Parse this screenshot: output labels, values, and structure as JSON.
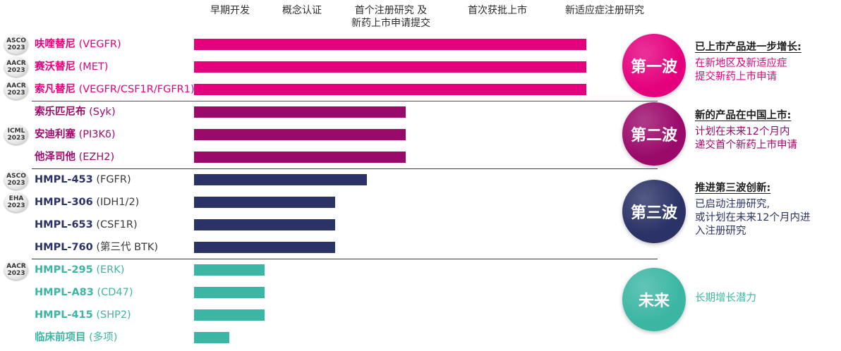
{
  "phases": [
    {
      "lines": [
        "早期开发"
      ]
    },
    {
      "lines": [
        "概念认证"
      ]
    },
    {
      "lines": [
        "首个注册研究 及",
        "新药上市申请提交"
      ]
    },
    {
      "lines": [
        "首次获批上市"
      ]
    },
    {
      "lines": [
        "新适应症注册研究"
      ]
    }
  ],
  "colors": {
    "wave1": "#e5007e",
    "wave2": "#9b0a6b",
    "wave3": "#2a3266",
    "future": "#3bb6a3"
  },
  "chart_data": {
    "type": "bar",
    "orientation": "horizontal",
    "x_scale": "development stage (5 stages)",
    "rows": [
      {
        "name": "呋喹替尼",
        "target": "(VEGFR)",
        "badge": [
          "ASCO",
          "2023"
        ],
        "group": "wave1",
        "stage": 5.0
      },
      {
        "name": "赛沃替尼",
        "target": "(MET)",
        "badge": [
          "AACR",
          "2023"
        ],
        "group": "wave1",
        "stage": 5.0
      },
      {
        "name": "索凡替尼",
        "target": "(VEGFR/CSF1R/FGFR1)",
        "badge": [
          "AACR",
          "2023"
        ],
        "group": "wave1",
        "stage": 5.0
      },
      {
        "name": "索乐匹尼布",
        "target": "(Syk)",
        "badge": null,
        "group": "wave2",
        "stage": 2.7
      },
      {
        "name": "安迪利塞",
        "target": "(PI3Kδ)",
        "badge": [
          "ICML",
          "2023"
        ],
        "group": "wave2",
        "stage": 2.7
      },
      {
        "name": "他泽司他",
        "target": "(EZH2)",
        "badge": null,
        "group": "wave2",
        "stage": 2.7
      },
      {
        "name": "HMPL-453",
        "target": "(FGFR)",
        "badge": [
          "ASCO",
          "2023"
        ],
        "group": "wave3",
        "stage": 2.2
      },
      {
        "name": "HMPL-306",
        "target": "(IDH1/2)",
        "badge": [
          "EHA",
          "2023"
        ],
        "group": "wave3",
        "stage": 1.8
      },
      {
        "name": "HMPL-653",
        "target": "(CSF1R)",
        "badge": null,
        "group": "wave3",
        "stage": 1.8
      },
      {
        "name": "HMPL-760",
        "target": "(第三代 BTK)",
        "badge": null,
        "group": "wave3",
        "stage": 1.8
      },
      {
        "name": "HMPL-295",
        "target": "(ERK)",
        "badge": [
          "AACR",
          "2023"
        ],
        "group": "future",
        "stage": 0.9
      },
      {
        "name": "HMPL-A83",
        "target": "(CD47)",
        "badge": null,
        "group": "future",
        "stage": 0.9
      },
      {
        "name": "HMPL-415",
        "target": "(SHP2)",
        "badge": null,
        "group": "future",
        "stage": 0.9
      },
      {
        "name": "临床前项目",
        "target": "(多项)",
        "badge": null,
        "group": "future",
        "stage": 0.45
      }
    ]
  },
  "waves": [
    {
      "key": "wave1",
      "label": "第一波",
      "heading": "已上市产品进一步增长:",
      "desc": [
        "在新地区及新适应症",
        "提交新药上市申请"
      ]
    },
    {
      "key": "wave2",
      "label": "第二波",
      "heading": "新的产品在中国上市:",
      "desc": [
        "计划在未来12个月内",
        "递交首个新药上市申请"
      ]
    },
    {
      "key": "wave3",
      "label": "第三波",
      "heading": "推进第三波创新:",
      "desc": [
        "已启动注册研究,",
        "或计划在未来12个月内进",
        "入注册研究"
      ]
    },
    {
      "key": "future",
      "label": "未来",
      "heading": "",
      "desc": [
        "长期增长潜力"
      ]
    }
  ]
}
